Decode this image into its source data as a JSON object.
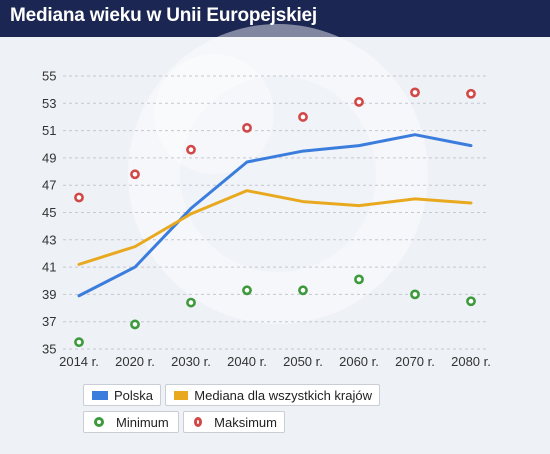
{
  "header": {
    "title": "Mediana wieku w Unii Europejskiej"
  },
  "colors": {
    "header_bg": "#1b2652",
    "plot_bg": "#eef1f6",
    "polska": "#3b7ddd",
    "mediana": "#e9a91f",
    "minimum": "#3c9a3c",
    "maksimum": "#d24848"
  },
  "chart_data": {
    "type": "line",
    "title": "Mediana wieku w Unii Europejskiej",
    "xlabel": "",
    "ylabel": "",
    "categories": [
      "2014 r.",
      "2020 r.",
      "2030 r.",
      "2040 r.",
      "2050 r.",
      "2060 r.",
      "2070 r.",
      "2080 r."
    ],
    "ylim": [
      35,
      55
    ],
    "yticks": [
      35,
      37,
      39,
      41,
      43,
      45,
      47,
      49,
      51,
      53,
      55
    ],
    "grid": "horizontal dashed",
    "legend_placement": "bottom",
    "series": [
      {
        "name": "Polska",
        "kind": "line",
        "color": "#3b7ddd",
        "values": [
          38.9,
          41.0,
          45.3,
          48.7,
          49.5,
          49.9,
          50.7,
          49.9
        ]
      },
      {
        "name": "Mediana dla wszystkich krajów",
        "kind": "line",
        "color": "#e9a91f",
        "values": [
          41.2,
          42.5,
          44.9,
          46.6,
          45.8,
          45.5,
          46.0,
          45.7
        ]
      },
      {
        "name": "Minimum",
        "kind": "scatter",
        "color": "#3c9a3c",
        "values": [
          35.5,
          36.8,
          38.4,
          39.3,
          39.3,
          40.1,
          39.0,
          38.5
        ]
      },
      {
        "name": "Maksimum",
        "kind": "scatter",
        "color": "#d24848",
        "values": [
          46.1,
          47.8,
          49.6,
          51.2,
          52.0,
          53.1,
          53.8,
          53.7
        ]
      }
    ]
  },
  "legend": {
    "items": [
      {
        "label": "Polska"
      },
      {
        "label": "Mediana dla wszystkich krajów"
      },
      {
        "label": "Minimum"
      },
      {
        "label": "Maksimum"
      }
    ]
  }
}
